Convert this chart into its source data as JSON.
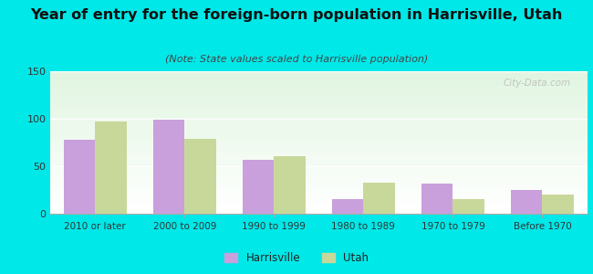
{
  "categories": [
    "2010 or later",
    "2000 to 2009",
    "1990 to 1999",
    "1980 to 1989",
    "1970 to 1979",
    "Before 1970"
  ],
  "harrisville_values": [
    78,
    99,
    57,
    15,
    32,
    25
  ],
  "utah_values": [
    97,
    79,
    61,
    33,
    15,
    20
  ],
  "harrisville_color": "#c9a0dc",
  "utah_color": "#c8d89a",
  "title": "Year of entry for the foreign-born population in Harrisville, Utah",
  "subtitle": "(Note: State values scaled to Harrisville population)",
  "title_fontsize": 11.5,
  "subtitle_fontsize": 8,
  "ylim": [
    0,
    150
  ],
  "yticks": [
    0,
    50,
    100,
    150
  ],
  "background_outer": "#00e8e8",
  "bar_width": 0.35,
  "legend_harrisville": "Harrisville",
  "legend_utah": "Utah",
  "watermark": "City-Data.com"
}
